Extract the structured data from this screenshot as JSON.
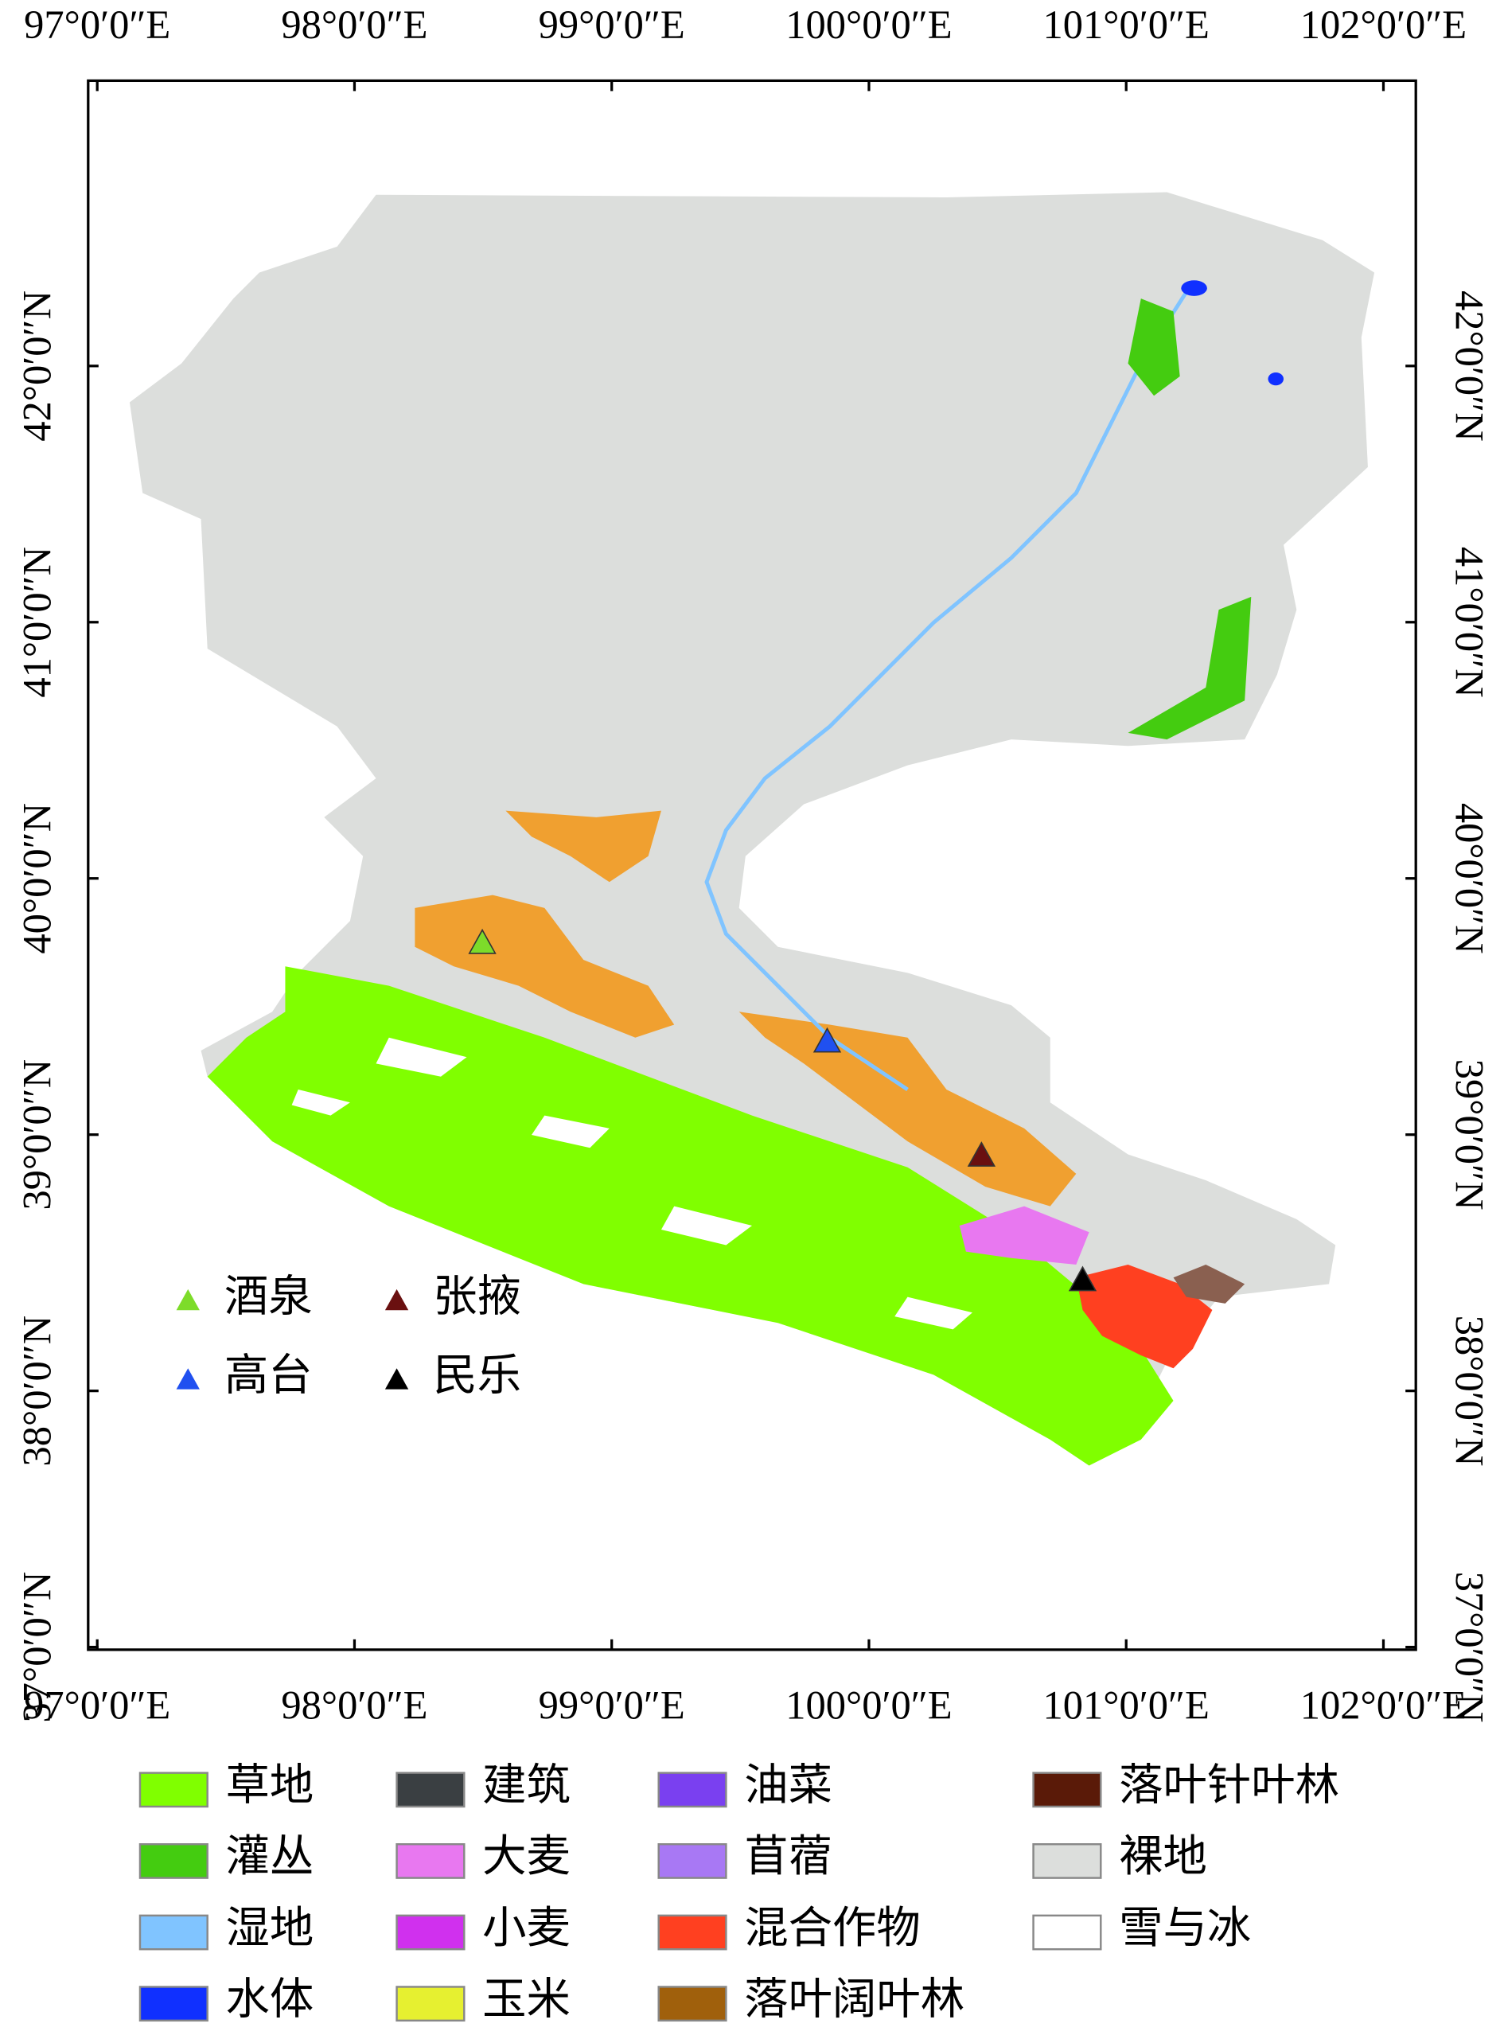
{
  "longitude_labels": [
    "97°0′0″E",
    "98°0′0″E",
    "99°0′0″E",
    "100°0′0″E",
    "101°0′0″E",
    "102°0′0″E"
  ],
  "latitude_labels": [
    "42°0′0″N",
    "41°0′0″N",
    "40°0′0″N",
    "39°0′0″N",
    "38°0′0″N",
    "37°0′0″N"
  ],
  "stations": [
    {
      "name": "酒泉",
      "color": "#7ddc2a"
    },
    {
      "name": "张掖",
      "color": "#6a1010"
    },
    {
      "name": "高台",
      "color": "#2050f0"
    },
    {
      "name": "民乐",
      "color": "#000000"
    }
  ],
  "legend": [
    {
      "label": "草地",
      "color": "#80ff00"
    },
    {
      "label": "灌丛",
      "color": "#44cc10"
    },
    {
      "label": "湿地",
      "color": "#80c4ff"
    },
    {
      "label": "水体",
      "color": "#1030ff"
    },
    {
      "label": "建筑",
      "color": "#3a3f42"
    },
    {
      "label": "大麦",
      "color": "#e878f0"
    },
    {
      "label": "小麦",
      "color": "#d030ee"
    },
    {
      "label": "玉米",
      "color": "#e6f030"
    },
    {
      "label": "油菜",
      "color": "#7a40f0"
    },
    {
      "label": "苜蓿",
      "color": "#a878f4"
    },
    {
      "label": "混合作物",
      "color": "#ff4020"
    },
    {
      "label": "落叶阔叶林",
      "color": "#a0600c"
    },
    {
      "label": "落叶针叶林",
      "color": "#5a1a08"
    },
    {
      "label": "裸地",
      "color": "#dcdedc"
    },
    {
      "label": "雪与冰",
      "color": "#ffffff"
    }
  ]
}
